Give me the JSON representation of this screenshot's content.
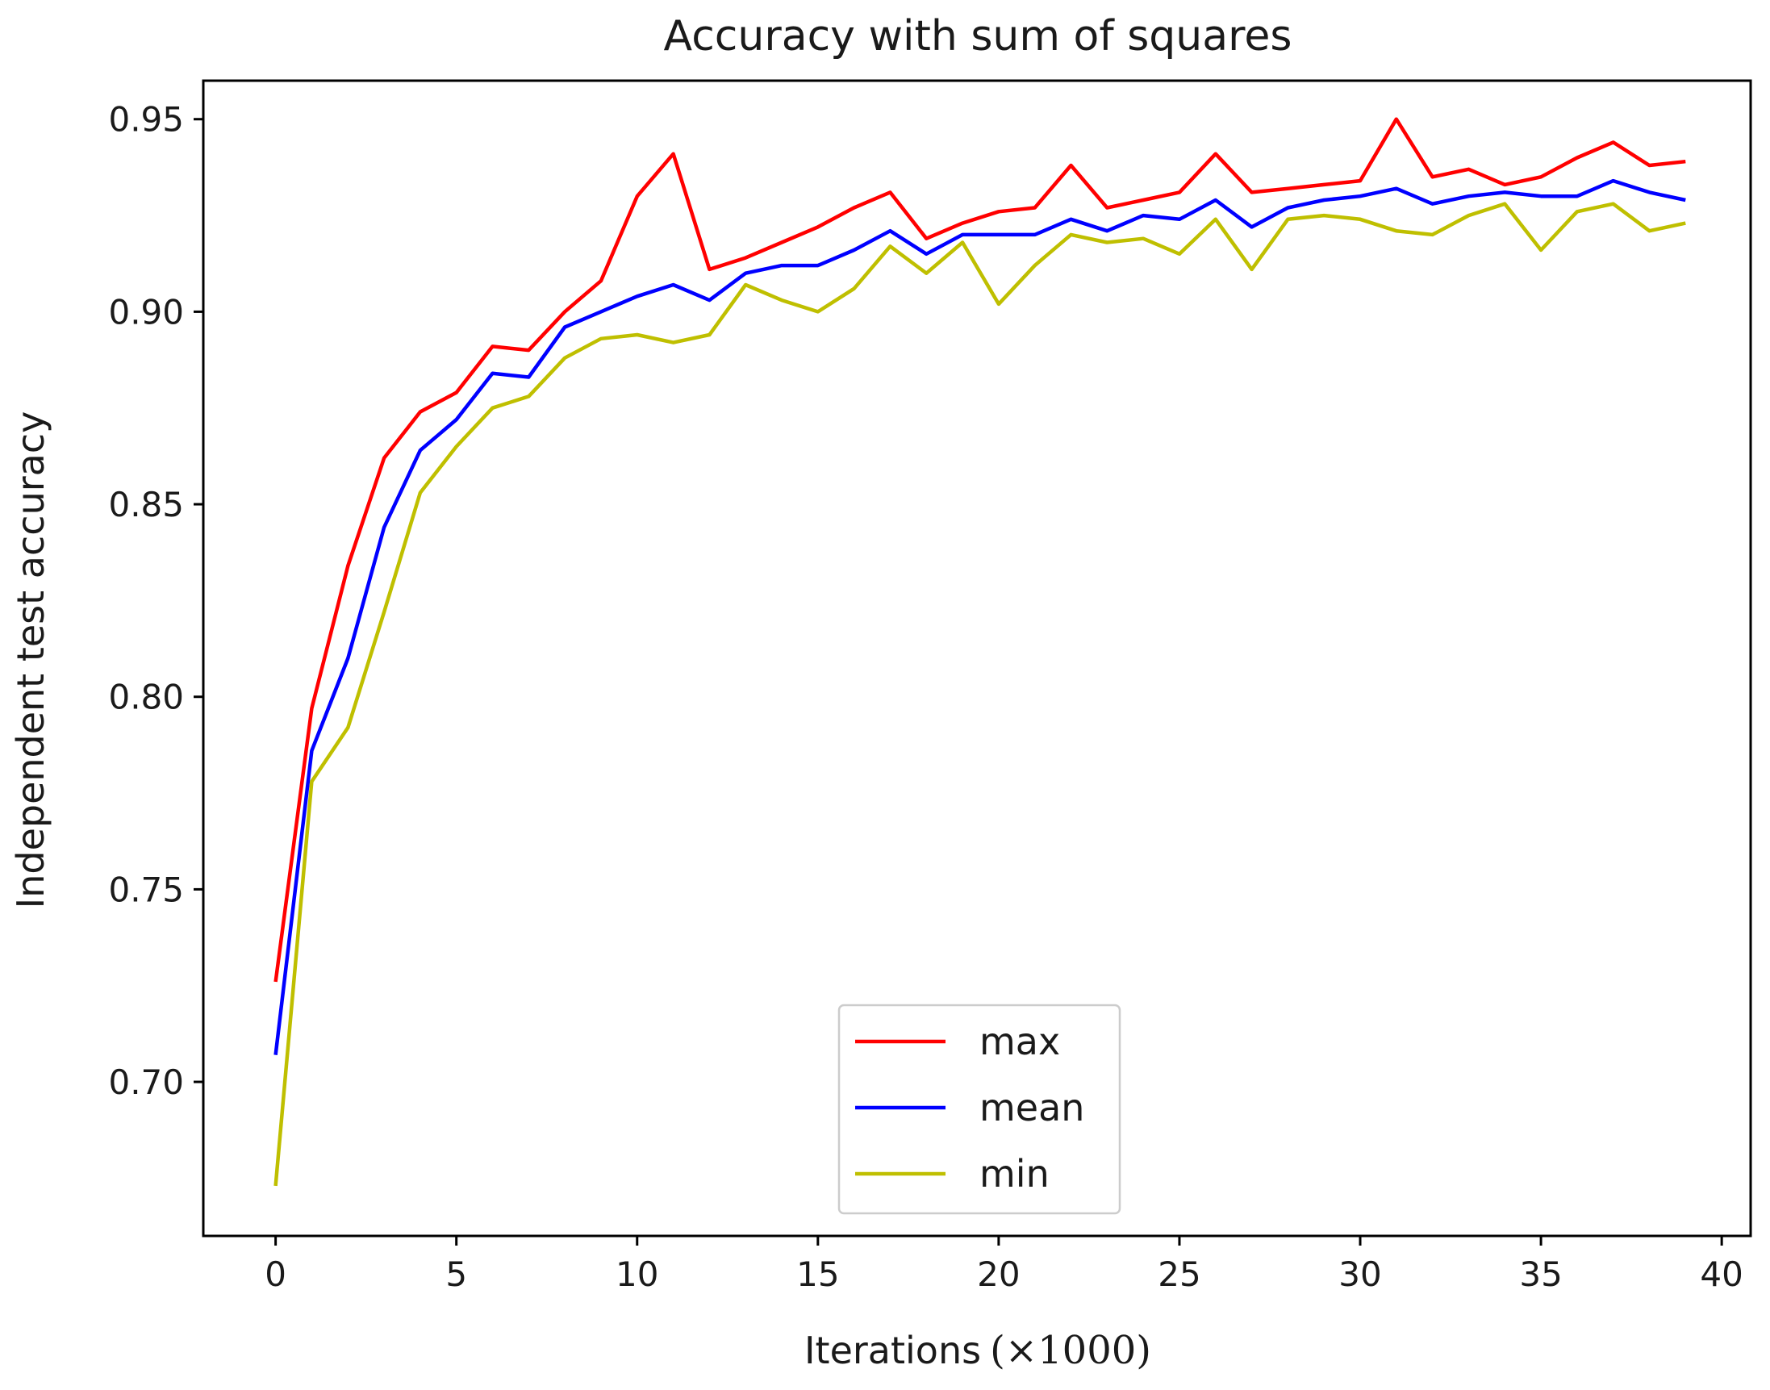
{
  "colors": {
    "max": "#ff0000",
    "mean": "#0000ff",
    "min": "#bfbf00",
    "axes": "#000000",
    "legend_border": "#cccccc"
  },
  "chart_data": {
    "type": "line",
    "title": "Accuracy with sum of squares",
    "xlabel": "Iterations",
    "xlabel_math": "(×1000)",
    "ylabel": "Independent test accuracy",
    "xlim": [
      -2,
      40.8
    ],
    "ylim": [
      0.66,
      0.96
    ],
    "xticks": [
      0,
      5,
      10,
      15,
      20,
      25,
      30,
      35,
      40
    ],
    "yticks": [
      0.7,
      0.75,
      0.8,
      0.85,
      0.9,
      0.95
    ],
    "ytick_labels": [
      "0.70",
      "0.75",
      "0.80",
      "0.85",
      "0.90",
      "0.95"
    ],
    "grid": false,
    "legend_position": "lower center",
    "x": [
      0,
      1,
      2,
      3,
      4,
      5,
      6,
      7,
      8,
      9,
      10,
      11,
      12,
      13,
      14,
      15,
      16,
      17,
      18,
      19,
      20,
      21,
      22,
      23,
      24,
      25,
      26,
      27,
      28,
      29,
      30,
      31,
      32,
      33,
      34,
      35,
      36,
      37,
      38,
      39
    ],
    "series": [
      {
        "name": "max",
        "color_key": "max",
        "values": [
          0.726,
          0.797,
          0.834,
          0.862,
          0.874,
          0.879,
          0.891,
          0.89,
          0.9,
          0.908,
          0.93,
          0.941,
          0.911,
          0.914,
          0.918,
          0.922,
          0.927,
          0.931,
          0.919,
          0.923,
          0.926,
          0.927,
          0.938,
          0.927,
          0.929,
          0.931,
          0.941,
          0.931,
          0.932,
          0.933,
          0.934,
          0.95,
          0.935,
          0.937,
          0.933,
          0.935,
          0.94,
          0.944,
          0.938,
          0.939
        ]
      },
      {
        "name": "mean",
        "color_key": "mean",
        "values": [
          0.707,
          0.786,
          0.81,
          0.844,
          0.864,
          0.872,
          0.884,
          0.883,
          0.896,
          0.9,
          0.904,
          0.907,
          0.903,
          0.91,
          0.912,
          0.912,
          0.916,
          0.921,
          0.915,
          0.92,
          0.92,
          0.92,
          0.924,
          0.921,
          0.925,
          0.924,
          0.929,
          0.922,
          0.927,
          0.929,
          0.93,
          0.932,
          0.928,
          0.93,
          0.931,
          0.93,
          0.93,
          0.934,
          0.931,
          0.929
        ]
      },
      {
        "name": "min",
        "color_key": "min",
        "values": [
          0.673,
          0.778,
          0.792,
          0.822,
          0.853,
          0.865,
          0.875,
          0.878,
          0.888,
          0.893,
          0.894,
          0.892,
          0.894,
          0.907,
          0.903,
          0.9,
          0.906,
          0.917,
          0.91,
          0.918,
          0.902,
          0.912,
          0.92,
          0.918,
          0.919,
          0.915,
          0.924,
          0.911,
          0.924,
          0.925,
          0.924,
          0.921,
          0.92,
          0.925,
          0.928,
          0.916,
          0.926,
          0.928,
          0.921,
          0.923
        ]
      }
    ]
  }
}
